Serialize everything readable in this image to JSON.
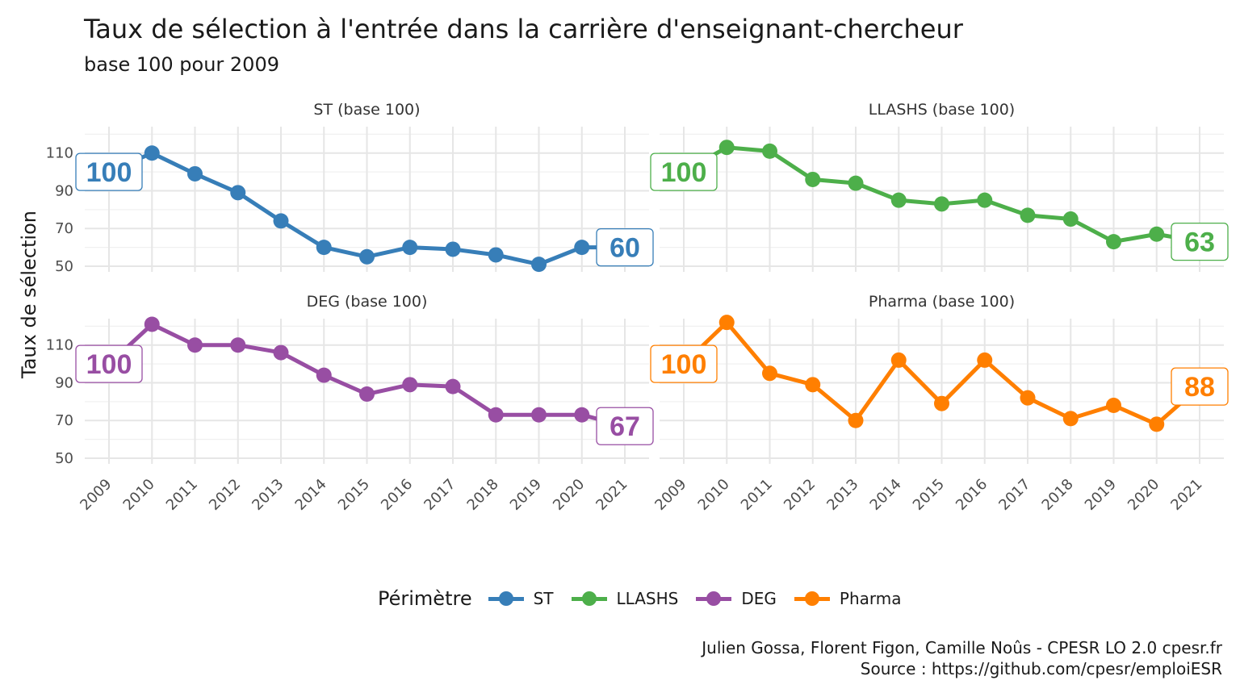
{
  "title": "Taux de sélection à l'entrée dans la carrière d'enseignant-chercheur",
  "subtitle": "base 100 pour 2009",
  "caption_line1": "Julien Gossa, Florent Figon, Camille Noûs - CPESR LO 2.0 cpesr.fr",
  "caption_line2": "Source : https://github.com/cpesr/emploiESR",
  "legend": {
    "title": "Périmètre",
    "items": [
      {
        "label": "ST",
        "color": "#377EB8"
      },
      {
        "label": "LLASHS",
        "color": "#4DAF4A"
      },
      {
        "label": "DEG",
        "color": "#984EA3"
      },
      {
        "label": "Pharma",
        "color": "#FF7F00"
      }
    ]
  },
  "chart_data": {
    "type": "line",
    "ylabel": "Taux de sélection",
    "x": [
      "2009",
      "2010",
      "2011",
      "2012",
      "2013",
      "2014",
      "2015",
      "2016",
      "2017",
      "2018",
      "2019",
      "2020",
      "2021"
    ],
    "y_ticks": [
      50,
      70,
      90,
      110
    ],
    "ylim": [
      47,
      124
    ],
    "grid": true,
    "panels": [
      {
        "strip": "ST (base 100)",
        "name": "ST",
        "color": "#377EB8",
        "values": [
          100,
          110,
          99,
          89,
          74,
          60,
          55,
          60,
          59,
          56,
          51,
          60,
          60
        ],
        "start_label": "100",
        "end_label": "60"
      },
      {
        "strip": "LLASHS (base 100)",
        "name": "LLASHS",
        "color": "#4DAF4A",
        "values": [
          100,
          113,
          111,
          96,
          94,
          85,
          83,
          85,
          77,
          75,
          63,
          67,
          63
        ],
        "start_label": "100",
        "end_label": "63"
      },
      {
        "strip": "DEG (base 100)",
        "name": "DEG",
        "color": "#984EA3",
        "values": [
          100,
          121,
          110,
          110,
          106,
          94,
          84,
          89,
          88,
          73,
          73,
          73,
          67
        ],
        "start_label": "100",
        "end_label": "67"
      },
      {
        "strip": "Pharma (base 100)",
        "name": "Pharma",
        "color": "#FF7F00",
        "values": [
          100,
          122,
          95,
          89,
          70,
          102,
          79,
          102,
          82,
          71,
          78,
          68,
          88
        ],
        "start_label": "100",
        "end_label": "88"
      }
    ]
  }
}
